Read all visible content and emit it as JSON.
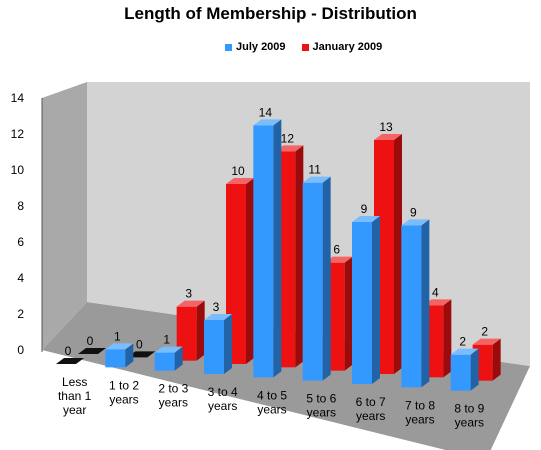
{
  "chart_data": {
    "type": "bar",
    "title": "Length of Membership - Distribution",
    "categories": [
      [
        "Less",
        "than 1",
        "year"
      ],
      [
        "1 to 2",
        "years"
      ],
      [
        "2 to 3",
        "years"
      ],
      [
        "3 to 4",
        "years"
      ],
      [
        "4 to 5",
        "years"
      ],
      [
        "5 to 6",
        "years"
      ],
      [
        "6 to 7",
        "years"
      ],
      [
        "7 to 8",
        "years"
      ],
      [
        "8 to 9",
        "years"
      ]
    ],
    "series": [
      {
        "name": "July 2009",
        "color": "#3399ff",
        "values": [
          0,
          1,
          1,
          3,
          14,
          11,
          9,
          9,
          2
        ]
      },
      {
        "name": "January 2009",
        "color": "#ee1111",
        "values": [
          0,
          0,
          3,
          10,
          12,
          6,
          13,
          4,
          2
        ]
      }
    ],
    "ylim": [
      0,
      14
    ],
    "yticks": [
      0,
      2,
      4,
      6,
      8,
      10,
      12,
      14
    ],
    "grid": false,
    "legend_position": "top",
    "style": "3d-clustered-column"
  }
}
